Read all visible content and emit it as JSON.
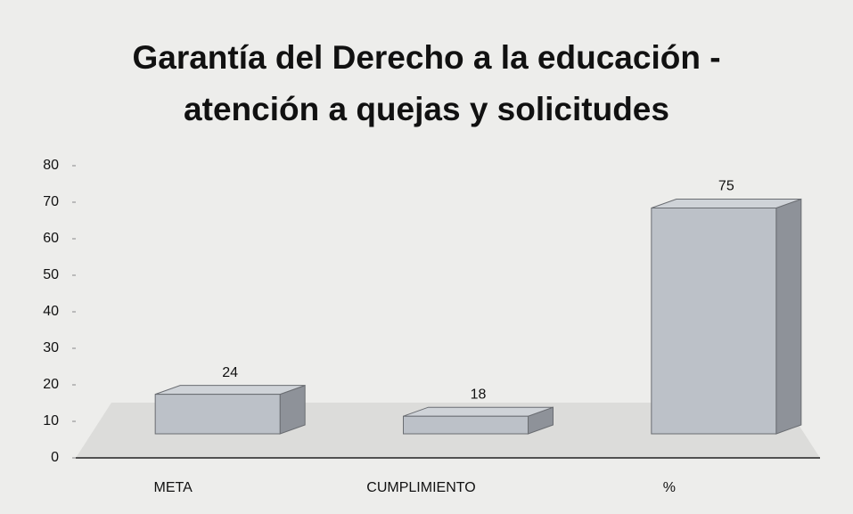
{
  "chart_data": {
    "type": "bar3d",
    "title": "Garantía del Derecho a la educación - atención a quejas y solicitudes",
    "categories": [
      "META",
      "CUMPLIMIENTO",
      "%"
    ],
    "values": [
      24,
      18,
      75
    ],
    "color": "#bcc1c8",
    "ylim": [
      0,
      80
    ],
    "yticks": [
      0,
      10,
      20,
      30,
      40,
      50,
      60,
      70,
      80
    ]
  }
}
